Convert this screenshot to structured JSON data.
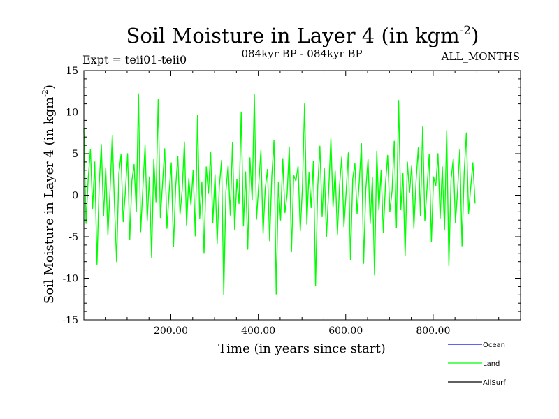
{
  "chart_data": {
    "type": "line",
    "title": "Soil Moisture in Layer 4 (in kgm",
    "title_sup": "-2",
    "title_close": ")",
    "expt_label": "Expt = teii01-teii0",
    "period_label": "084kyr BP - 084kyr BP",
    "months_label": "ALL_MONTHS",
    "xlabel": "Time (in years since start)",
    "ylabel": "Soil Moisture in Layer 4 (in kgm",
    "ylabel_sup": "-2",
    "ylabel_close": ")",
    "xlim": [
      1,
      1000
    ],
    "ylim": [
      -15,
      15
    ],
    "xticks": [
      200,
      400,
      600,
      800
    ],
    "xtick_labels": [
      "200.00",
      "400.00",
      "600.00",
      "800.00"
    ],
    "yticks": [
      -15,
      -10,
      -5,
      0,
      5,
      10,
      15
    ],
    "ytick_labels": [
      "-15",
      "-10",
      "-5",
      "0",
      "5",
      "10",
      "15"
    ],
    "grid": false,
    "legend_position": "bottom-right",
    "series": [
      {
        "name": "Ocean",
        "color": "#0000ff",
        "values": []
      },
      {
        "name": "Land",
        "color": "#00ff00",
        "x_start": 1,
        "x_step": 5,
        "values": [
          8.0,
          -3.4,
          2.1,
          5.5,
          -1.6,
          4.0,
          -8.3,
          1.2,
          6.1,
          -2.5,
          3.3,
          -4.8,
          0.6,
          7.2,
          -1.1,
          -8.0,
          2.6,
          4.9,
          -3.2,
          0.4,
          5.0,
          -5.3,
          1.8,
          3.7,
          -2.0,
          12.2,
          -4.4,
          0.9,
          6.0,
          -3.1,
          2.2,
          -7.5,
          4.3,
          -0.8,
          11.5,
          -2.7,
          1.4,
          5.6,
          -4.0,
          0.3,
          3.9,
          -6.2,
          1.0,
          4.7,
          -2.3,
          0.7,
          6.4,
          -3.6,
          2.0,
          -1.2,
          3.0,
          -4.9,
          9.6,
          -2.8,
          1.6,
          -7.0,
          3.4,
          0.2,
          5.2,
          -3.3,
          2.5,
          -5.8,
          1.1,
          4.2,
          -12.0,
          0.5,
          3.6,
          -2.4,
          6.3,
          -4.1,
          1.9,
          -1.0,
          10.0,
          -3.7,
          2.8,
          -6.5,
          4.5,
          -0.6,
          12.1,
          -2.9,
          1.3,
          5.4,
          -4.6,
          0.8,
          3.1,
          -5.5,
          2.3,
          6.6,
          -11.9,
          1.5,
          -3.0,
          4.4,
          -2.1,
          0.1,
          5.8,
          -6.8,
          2.4,
          1.7,
          3.5,
          -4.3,
          0.9,
          11.0,
          -3.5,
          2.7,
          -1.5,
          4.1,
          -10.9,
          1.0,
          5.9,
          -2.6,
          3.2,
          -5.0,
          0.6,
          6.8,
          -1.4,
          2.9,
          -4.7,
          1.2,
          4.6,
          -3.8,
          0.4,
          5.1,
          -7.8,
          2.0,
          3.8,
          -2.2,
          1.6,
          6.2,
          -8.2,
          0.7,
          4.3,
          -3.4,
          2.1,
          -9.6,
          5.3,
          -1.8,
          3.0,
          -4.5,
          1.4,
          4.8,
          -2.0,
          0.5,
          6.5,
          -3.9,
          11.4,
          -1.7,
          2.6,
          -7.3,
          4.0,
          0.3,
          3.6,
          -4.0,
          1.8,
          5.7,
          -2.5,
          8.3,
          -3.1,
          0.8,
          4.9,
          -5.6,
          2.2,
          1.1,
          5.0,
          -2.8,
          3.4,
          -4.2,
          7.8,
          -8.5,
          1.9,
          4.4,
          -3.3,
          0.6,
          5.5,
          -6.1,
          2.7,
          7.5,
          -2.2,
          1.0,
          3.9,
          -1.0
        ]
      },
      {
        "name": "AllSurf",
        "color": "#000000",
        "values": []
      }
    ]
  }
}
